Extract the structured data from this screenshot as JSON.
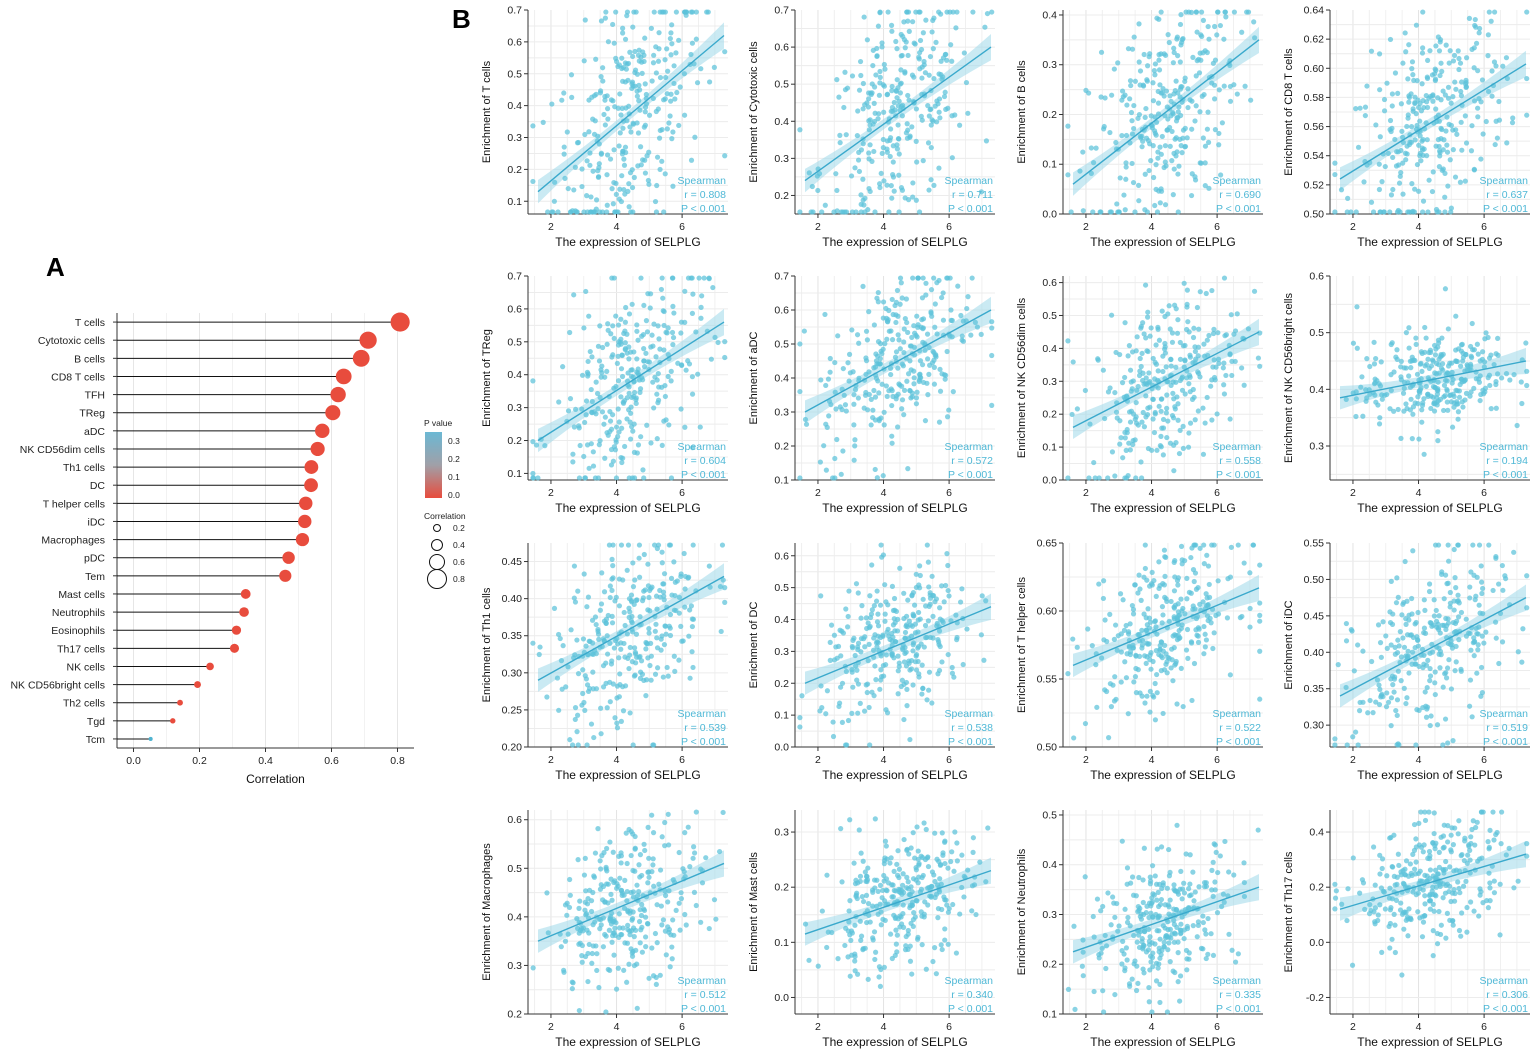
{
  "panel_a_label": "A",
  "panel_b_label": "B",
  "chart_data": [
    {
      "id": "A",
      "type": "lollipop",
      "xlabel": "Correlation",
      "xlim": [
        -0.05,
        0.85
      ],
      "xticks": [
        0.0,
        0.2,
        0.4,
        0.6,
        0.8
      ],
      "xtick_labels": [
        "0.0",
        "0.2",
        "0.4",
        "0.6",
        "0.8"
      ],
      "categories": [
        "T cells",
        "Cytotoxic cells",
        "B cells",
        "CD8 T cells",
        "TFH",
        "TReg",
        "aDC",
        "NK CD56dim cells",
        "Th1 cells",
        "DC",
        "T helper cells",
        "iDC",
        "Macrophages",
        "pDC",
        "Tem",
        "Mast cells",
        "Neutrophils",
        "Eosinophils",
        "Th17 cells",
        "NK cells",
        "NK CD56bright cells",
        "Th2 cells",
        "Tgd",
        "Tcm"
      ],
      "values": [
        0.808,
        0.711,
        0.69,
        0.637,
        0.62,
        0.604,
        0.572,
        0.558,
        0.539,
        0.538,
        0.522,
        0.519,
        0.512,
        0.47,
        0.46,
        0.34,
        0.335,
        0.312,
        0.306,
        0.232,
        0.194,
        0.141,
        0.119,
        0.052
      ],
      "pvalue_colors": [
        "#e84c3d",
        "#e84c3d",
        "#e84c3d",
        "#e84c3d",
        "#e84c3d",
        "#e84c3d",
        "#e84c3d",
        "#e84c3d",
        "#e84c3d",
        "#e84c3d",
        "#e84c3d",
        "#e84c3d",
        "#e84c3d",
        "#e84c3d",
        "#e84c3d",
        "#e84c3d",
        "#e84c3d",
        "#e84c3d",
        "#e84c3d",
        "#e84c3d",
        "#e84c3d",
        "#e84c3d",
        "#e84c3d",
        "#4fb3d0"
      ],
      "legend_pvalue": {
        "title": "P value",
        "ticks": [
          "0.3",
          "0.2",
          "0.1",
          "0.0"
        ],
        "color_top": "#6bb8d4",
        "color_bottom": "#e84c3d"
      },
      "legend_size": {
        "title": "Correlation",
        "labels": [
          "0.2",
          "0.4",
          "0.6",
          "0.8"
        ]
      }
    },
    {
      "id": "B",
      "type": "scatter_grid",
      "xlabel": "The expression of SELPLG",
      "xlim": [
        1.3,
        7.4
      ],
      "xticks": [
        2,
        4,
        6
      ],
      "point_color": "#5bc2da",
      "line_color": "#3aa9cc",
      "stat_method": "Spearman",
      "panels": [
        {
          "ylabel": "Enrichment of T cells",
          "ylim": [
            0.06,
            0.7
          ],
          "yticks": [
            0.1,
            0.2,
            0.3,
            0.4,
            0.5,
            0.6,
            0.7
          ],
          "ytick_labels": [
            "0.1",
            "0.2",
            "0.3",
            "0.4",
            "0.5",
            "0.6",
            "0.7"
          ],
          "r": "r = 0.808",
          "p": "P < 0.001",
          "line": [
            0.13,
            0.62
          ],
          "n": 300
        },
        {
          "ylabel": "Enrichment of Cytotoxic cells",
          "ylim": [
            0.15,
            0.7
          ],
          "yticks": [
            0.2,
            0.3,
            0.4,
            0.5,
            0.6,
            0.7
          ],
          "ytick_labels": [
            "0.2",
            "0.3",
            "0.4",
            "0.5",
            "0.6",
            "0.7"
          ],
          "r": "r = 0.711",
          "p": "P < 0.001",
          "line": [
            0.24,
            0.6
          ],
          "n": 300
        },
        {
          "ylabel": "Enrichment of B cells",
          "ylim": [
            0.0,
            0.41
          ],
          "yticks": [
            0.0,
            0.1,
            0.2,
            0.3,
            0.4
          ],
          "ytick_labels": [
            "0.0",
            "0.1",
            "0.2",
            "0.3",
            "0.4"
          ],
          "r": "r = 0.690",
          "p": "P < 0.001",
          "line": [
            0.06,
            0.35
          ],
          "n": 300
        },
        {
          "ylabel": "Enrichment of CD8 T cells",
          "ylim": [
            0.5,
            0.64
          ],
          "yticks": [
            0.5,
            0.52,
            0.54,
            0.56,
            0.58,
            0.6,
            0.62,
            0.64
          ],
          "ytick_labels": [
            "0.50",
            "0.52",
            "0.54",
            "0.56",
            "0.58",
            "0.60",
            "0.62",
            "0.64"
          ],
          "r": "r = 0.637",
          "p": "P < 0.001",
          "line": [
            0.524,
            0.603
          ],
          "n": 300
        },
        {
          "ylabel": "Enrichment of TReg",
          "ylim": [
            0.08,
            0.7
          ],
          "yticks": [
            0.1,
            0.2,
            0.3,
            0.4,
            0.5,
            0.6,
            0.7
          ],
          "ytick_labels": [
            "0.1",
            "0.2",
            "0.3",
            "0.4",
            "0.5",
            "0.6",
            "0.7"
          ],
          "r": "r = 0.604",
          "p": "P < 0.001",
          "line": [
            0.2,
            0.56
          ],
          "n": 300
        },
        {
          "ylabel": "Enrichment of aDC",
          "ylim": [
            0.1,
            0.7
          ],
          "yticks": [
            0.1,
            0.2,
            0.3,
            0.4,
            0.5,
            0.6,
            0.7
          ],
          "ytick_labels": [
            "0.1",
            "0.2",
            "0.3",
            "0.4",
            "0.5",
            "0.6",
            "0.7"
          ],
          "r": "r = 0.572",
          "p": "P < 0.001",
          "line": [
            0.3,
            0.6
          ],
          "n": 300
        },
        {
          "ylabel": "Enrichment of NK CD56dim cells",
          "ylim": [
            0.0,
            0.62
          ],
          "yticks": [
            0.0,
            0.1,
            0.2,
            0.3,
            0.4,
            0.5,
            0.6
          ],
          "ytick_labels": [
            "0.0",
            "0.1",
            "0.2",
            "0.3",
            "0.4",
            "0.5",
            "0.6"
          ],
          "r": "r = 0.558",
          "p": "P < 0.001",
          "line": [
            0.16,
            0.45
          ],
          "n": 300
        },
        {
          "ylabel": "Enrichment of NK CD56bright cells",
          "ylim": [
            0.24,
            0.6
          ],
          "yticks": [
            0.3,
            0.4,
            0.5,
            0.6
          ],
          "ytick_labels": [
            "0.3",
            "0.4",
            "0.5",
            "0.6"
          ],
          "r": "r = 0.194",
          "p": "P < 0.001",
          "line": [
            0.385,
            0.45
          ],
          "n": 300
        },
        {
          "ylabel": "Enrichment of Th1 cells",
          "ylim": [
            0.2,
            0.475
          ],
          "yticks": [
            0.2,
            0.25,
            0.3,
            0.35,
            0.4,
            0.45
          ],
          "ytick_labels": [
            "0.20",
            "0.25",
            "0.30",
            "0.35",
            "0.40",
            "0.45"
          ],
          "r": "r = 0.539",
          "p": "P < 0.001",
          "line": [
            0.29,
            0.43
          ],
          "n": 300
        },
        {
          "ylabel": "Enrichment of DC",
          "ylim": [
            0.0,
            0.64
          ],
          "yticks": [
            0.0,
            0.1,
            0.2,
            0.3,
            0.4,
            0.5,
            0.6
          ],
          "ytick_labels": [
            "0.0",
            "0.1",
            "0.2",
            "0.3",
            "0.4",
            "0.5",
            "0.6"
          ],
          "r": "r = 0.538",
          "p": "P < 0.001",
          "line": [
            0.2,
            0.44
          ],
          "n": 300
        },
        {
          "ylabel": "Enrichment of T helper cells",
          "ylim": [
            0.5,
            0.65
          ],
          "yticks": [
            0.5,
            0.55,
            0.6,
            0.65
          ],
          "ytick_labels": [
            "0.50",
            "0.55",
            "0.60",
            "0.65"
          ],
          "r": "r = 0.522",
          "p": "P < 0.001",
          "line": [
            0.56,
            0.617
          ],
          "n": 300
        },
        {
          "ylabel": "Enrichment of iDC",
          "ylim": [
            0.27,
            0.55
          ],
          "yticks": [
            0.3,
            0.35,
            0.4,
            0.45,
            0.5,
            0.55
          ],
          "ytick_labels": [
            "0.30",
            "0.35",
            "0.40",
            "0.45",
            "0.50",
            "0.55"
          ],
          "r": "r = 0.519",
          "p": "P < 0.001",
          "line": [
            0.34,
            0.475
          ],
          "n": 300
        },
        {
          "ylabel": "Enrichment of Macrophages",
          "ylim": [
            0.2,
            0.62
          ],
          "yticks": [
            0.2,
            0.3,
            0.4,
            0.5,
            0.6
          ],
          "ytick_labels": [
            "0.2",
            "0.3",
            "0.4",
            "0.5",
            "0.6"
          ],
          "r": "r = 0.512",
          "p": "P < 0.001",
          "line": [
            0.35,
            0.51
          ],
          "n": 300
        },
        {
          "ylabel": "Enrichment of Mast cells",
          "ylim": [
            -0.03,
            0.34
          ],
          "yticks": [
            0.0,
            0.1,
            0.2,
            0.3
          ],
          "ytick_labels": [
            "0.0",
            "0.1",
            "0.2",
            "0.3"
          ],
          "r": "r = 0.340",
          "p": "P < 0.001",
          "line": [
            0.115,
            0.23
          ],
          "n": 300
        },
        {
          "ylabel": "Enrichment of Neutrophils",
          "ylim": [
            0.1,
            0.51
          ],
          "yticks": [
            0.1,
            0.2,
            0.3,
            0.4,
            0.5
          ],
          "ytick_labels": [
            "0.1",
            "0.2",
            "0.3",
            "0.4",
            "0.5"
          ],
          "r": "r = 0.335",
          "p": "P < 0.001",
          "line": [
            0.225,
            0.355
          ],
          "n": 300
        },
        {
          "ylabel": "Enrichment of Th17 cells",
          "ylim": [
            -0.26,
            0.48
          ],
          "yticks": [
            -0.2,
            0.0,
            0.2,
            0.4
          ],
          "ytick_labels": [
            "-0.2",
            "0.0",
            "0.2",
            "0.4"
          ],
          "r": "r = 0.306",
          "p": "P < 0.001",
          "line": [
            0.12,
            0.32
          ],
          "n": 300
        }
      ]
    }
  ]
}
